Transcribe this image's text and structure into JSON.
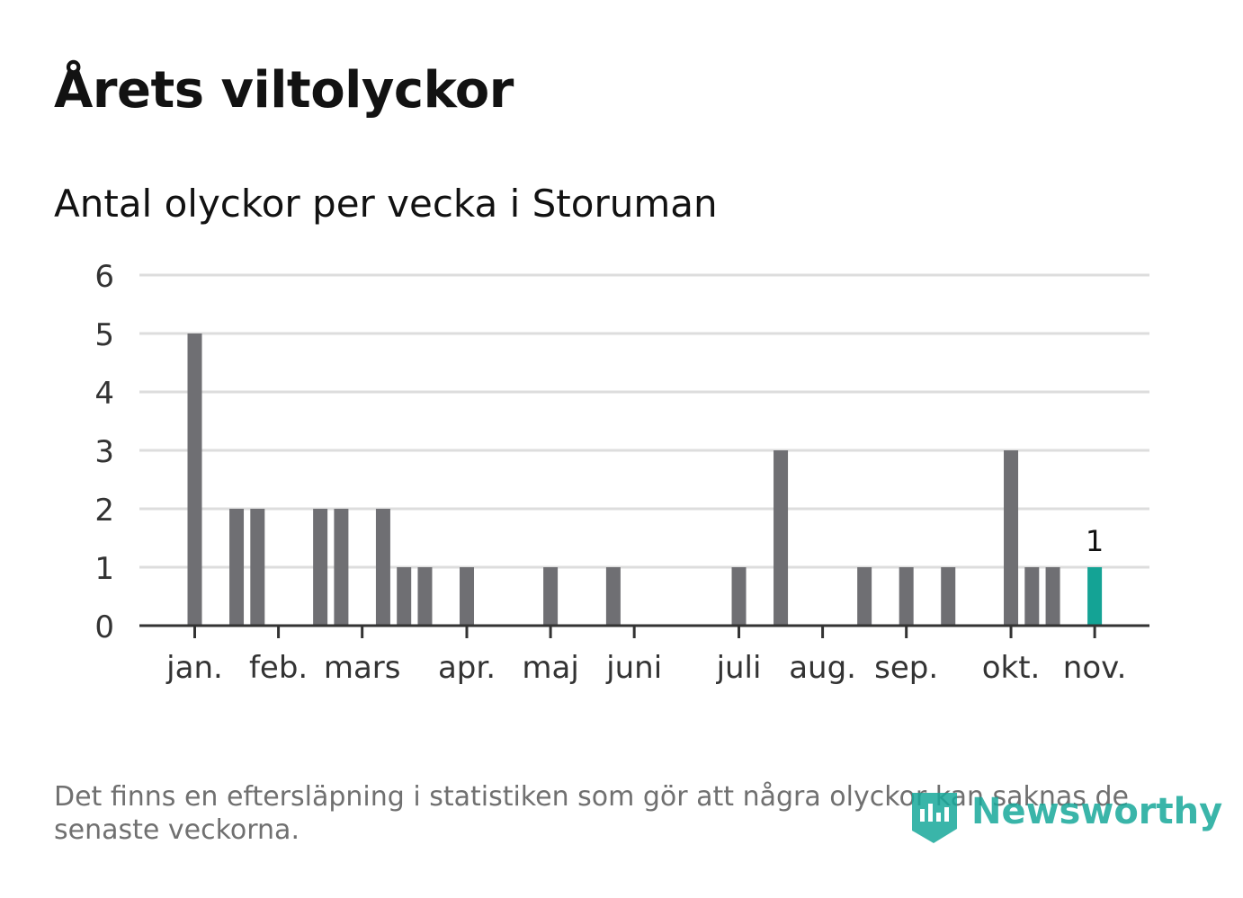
{
  "title": "Årets viltolyckor",
  "subtitle": "Antal olyckor per vecka i Storuman",
  "footnote": "Det finns en eftersläpning i statistiken som gör att några olyckor kan saknas de senaste veckorna.",
  "logo": {
    "text": "Newsworthy",
    "icon": "newsworthy-logo-icon"
  },
  "colors": {
    "bar": "#6f6f73",
    "highlight": "#14a395",
    "grid": "#dddddd",
    "axis": "#333333",
    "text": "#121212",
    "muted": "#707070"
  },
  "chart_data": {
    "type": "bar",
    "title": "Antal olyckor per vecka i Storuman",
    "xlabel": "",
    "ylabel": "",
    "ylim": [
      0,
      6
    ],
    "yticks": [
      "0",
      "1",
      "2",
      "3",
      "4",
      "5",
      "6"
    ],
    "x_unit": "week",
    "weeks": [
      1,
      2,
      3,
      4,
      5,
      6,
      7,
      8,
      9,
      10,
      11,
      12,
      13,
      14,
      15,
      16,
      17,
      18,
      19,
      20,
      21,
      22,
      23,
      24,
      25,
      26,
      27,
      28,
      29,
      30,
      31,
      32,
      33,
      34,
      35,
      36,
      37,
      38,
      39,
      40,
      41,
      42,
      43,
      44,
      45,
      46
    ],
    "values": [
      5,
      0,
      2,
      2,
      0,
      0,
      2,
      2,
      0,
      2,
      1,
      1,
      0,
      1,
      0,
      0,
      0,
      1,
      0,
      0,
      1,
      0,
      0,
      0,
      0,
      0,
      1,
      0,
      3,
      0,
      0,
      0,
      1,
      0,
      1,
      0,
      1,
      0,
      0,
      3,
      1,
      1,
      0,
      1,
      0,
      0
    ],
    "highlight_week": 44,
    "highlight_label": "1",
    "month_labels": [
      {
        "label": "jan.",
        "week": 1
      },
      {
        "label": "feb.",
        "week": 5
      },
      {
        "label": "mars",
        "week": 9
      },
      {
        "label": "apr.",
        "week": 14
      },
      {
        "label": "maj",
        "week": 18
      },
      {
        "label": "juni",
        "week": 22
      },
      {
        "label": "juli",
        "week": 27
      },
      {
        "label": "aug.",
        "week": 31
      },
      {
        "label": "sep.",
        "week": 35
      },
      {
        "label": "okt.",
        "week": 40
      },
      {
        "label": "nov.",
        "week": 44
      }
    ]
  }
}
